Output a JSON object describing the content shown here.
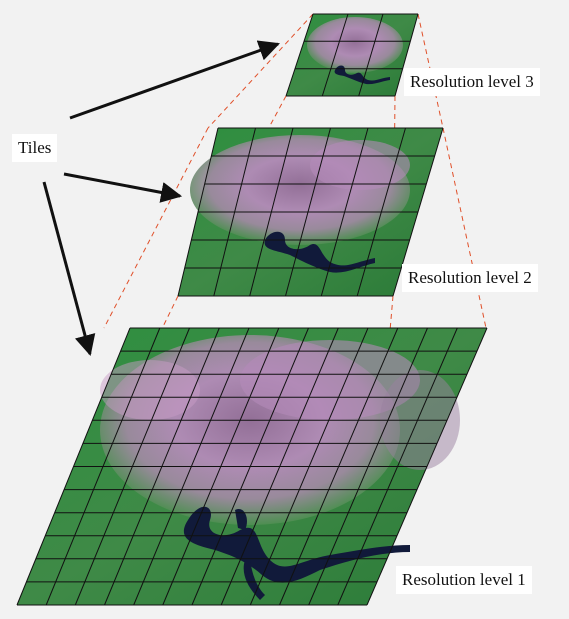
{
  "tiles_label": "Tiles",
  "levels": [
    {
      "id": "level-3",
      "label": "Resolution level 3",
      "grid": 3
    },
    {
      "id": "level-2",
      "label": "Resolution level 2",
      "grid": 6
    },
    {
      "id": "level-1",
      "label": "Resolution level 1",
      "grid": 12
    }
  ],
  "colors": {
    "background": "#f2f2f2",
    "guide_lines": "#e0502a",
    "grid_lines": "#111111",
    "arrows": "#111111",
    "vegetation": "#2f8a3c",
    "urban": "#b07aae",
    "water": "#101a3a"
  },
  "image_content": "satellite imagery (false color: green vegetation, pink/purple urban area, dark blue reservoir)"
}
